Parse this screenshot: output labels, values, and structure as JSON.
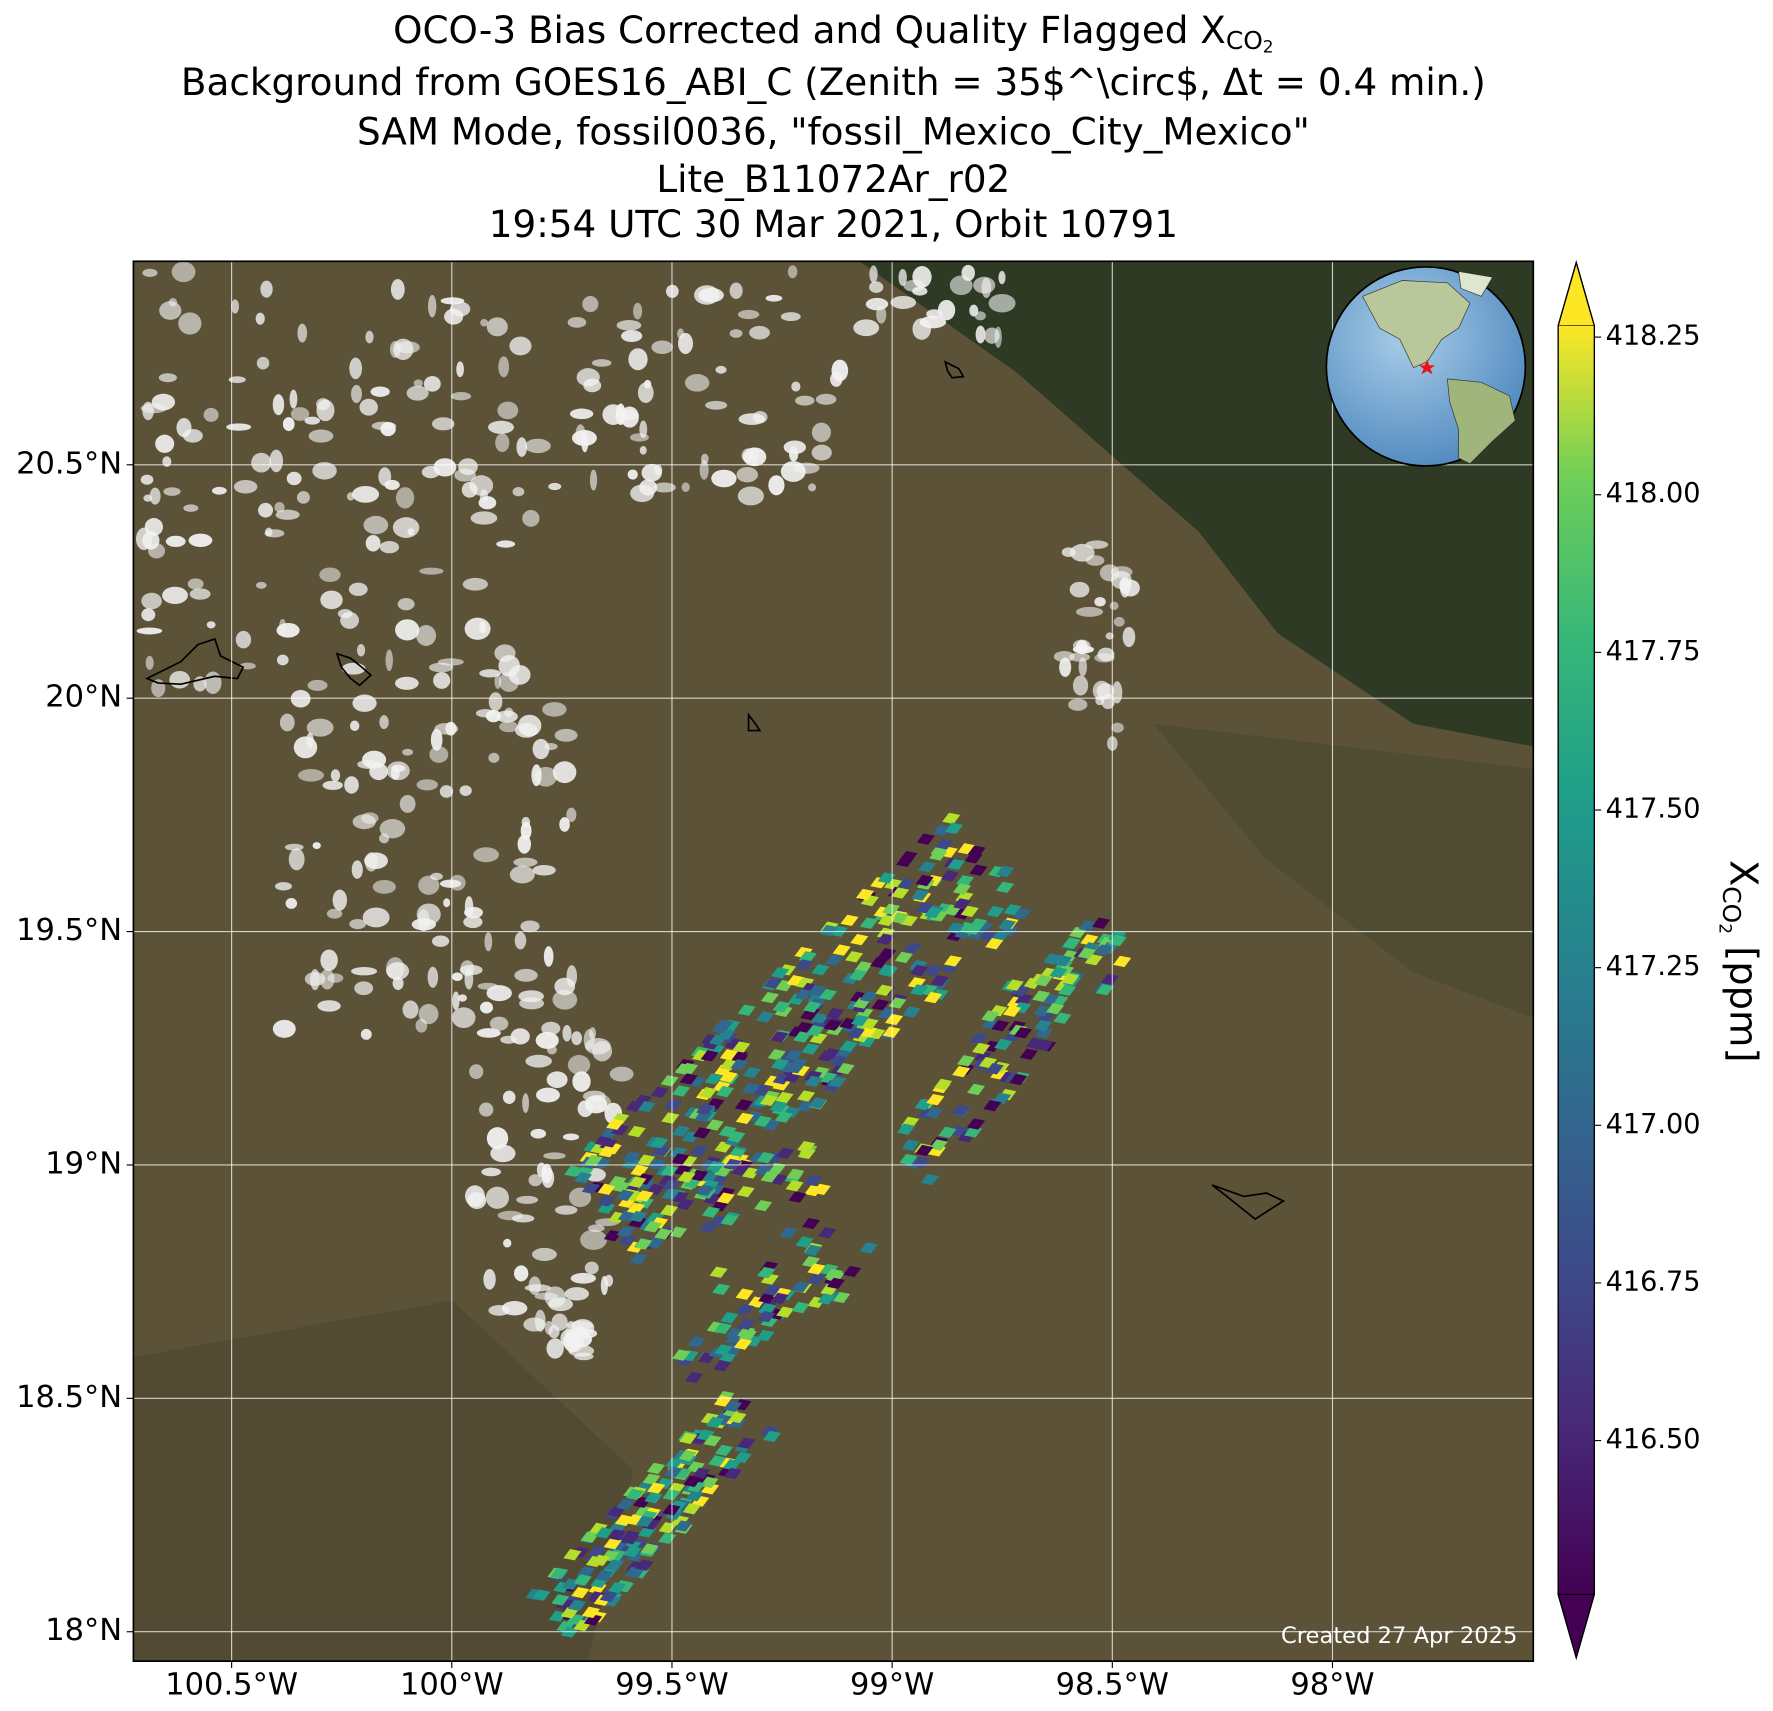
{
  "map": {
    "title": [
      {
        "text": "OCO-3 Bias Corrected and Quality Flagged X",
        "sub": "CO",
        "subsub": "2"
      },
      {
        "text": "Background from GOES16_ABI_C (Zenith = 35$^\\circ$, Δt =  0.4 min.)"
      },
      {
        "text": "SAM Mode, fossil0036, \"fossil_Mexico_City_Mexico\""
      },
      {
        "text": "Lite_B11072Ar_r02"
      },
      {
        "text": "19:54 UTC 30 Mar 2021, Orbit 10791"
      }
    ],
    "xlim": [
      -100.723,
      -97.544
    ],
    "ylim": [
      17.937,
      20.936
    ],
    "xticks": [
      {
        "value": -100.5,
        "label": "100.5°W"
      },
      {
        "value": -100,
        "label": "100°W"
      },
      {
        "value": -99.5,
        "label": "99.5°W"
      },
      {
        "value": -99,
        "label": "99°W"
      },
      {
        "value": -98.5,
        "label": "98.5°W"
      },
      {
        "value": -98,
        "label": "98°W"
      }
    ],
    "yticks": [
      {
        "value": 18,
        "label": "18°N"
      },
      {
        "value": 18.5,
        "label": "18.5°N"
      },
      {
        "value": 19,
        "label": "19°N"
      },
      {
        "value": 19.5,
        "label": "19.5°N"
      },
      {
        "value": 20,
        "label": "20°N"
      },
      {
        "value": 20.5,
        "label": "20.5°N"
      }
    ],
    "grid": true,
    "note": "Created 27 Apr 2025",
    "colorbar": {
      "label": {
        "text": "X",
        "sub": "CO",
        "subsub": "2",
        "unit": " [ppm]"
      },
      "lim": [
        416.256,
        418.268
      ],
      "ticks": [
        {
          "value": 416.5,
          "label": "416.50"
        },
        {
          "value": 416.75,
          "label": "416.75"
        },
        {
          "value": 417,
          "label": "417.00"
        },
        {
          "value": 417.25,
          "label": "417.25"
        },
        {
          "value": 417.5,
          "label": "417.50"
        },
        {
          "value": 417.75,
          "label": "417.75"
        },
        {
          "value": 418,
          "label": "418.00"
        },
        {
          "value": 418.25,
          "label": "418.25"
        }
      ]
    }
  }
}
